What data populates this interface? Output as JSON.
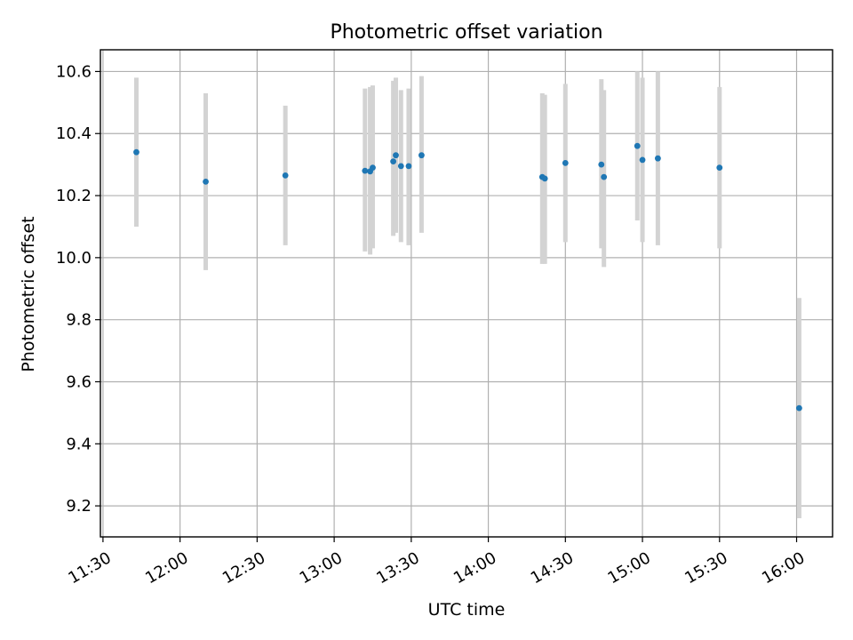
{
  "chart_data": {
    "type": "scatter",
    "title": "Photometric offset variation",
    "xlabel": "UTC time",
    "ylabel": "Photometric offset",
    "x_tick_labels": [
      "11:30",
      "12:00",
      "12:30",
      "13:00",
      "13:30",
      "14:00",
      "14:30",
      "15:00",
      "15:30",
      "16:00"
    ],
    "y_tick_labels": [
      "9.2",
      "9.4",
      "9.6",
      "9.8",
      "10.0",
      "10.2",
      "10.4",
      "10.6"
    ],
    "xlim": [
      "11:29",
      "16:14"
    ],
    "ylim": [
      9.1,
      10.67
    ],
    "grid": true,
    "colors": {
      "point": "#1f77b4",
      "errorbar": "#d3d3d3",
      "grid": "#b0b0b0"
    },
    "points": [
      {
        "x": "11:43",
        "y": 10.34,
        "ylow": 10.1,
        "yhigh": 10.58
      },
      {
        "x": "12:10",
        "y": 10.245,
        "ylow": 9.96,
        "yhigh": 10.53
      },
      {
        "x": "12:41",
        "y": 10.265,
        "ylow": 10.04,
        "yhigh": 10.49
      },
      {
        "x": "13:12",
        "y": 10.28,
        "ylow": 10.02,
        "yhigh": 10.545
      },
      {
        "x": "13:14",
        "y": 10.278,
        "ylow": 10.01,
        "yhigh": 10.55
      },
      {
        "x": "13:15",
        "y": 10.29,
        "ylow": 10.03,
        "yhigh": 10.555
      },
      {
        "x": "13:23",
        "y": 10.31,
        "ylow": 10.07,
        "yhigh": 10.57
      },
      {
        "x": "13:24",
        "y": 10.33,
        "ylow": 10.08,
        "yhigh": 10.58
      },
      {
        "x": "13:26",
        "y": 10.295,
        "ylow": 10.05,
        "yhigh": 10.54
      },
      {
        "x": "13:29",
        "y": 10.295,
        "ylow": 10.04,
        "yhigh": 10.545
      },
      {
        "x": "13:34",
        "y": 10.33,
        "ylow": 10.08,
        "yhigh": 10.585
      },
      {
        "x": "14:21",
        "y": 10.26,
        "ylow": 9.98,
        "yhigh": 10.53
      },
      {
        "x": "14:22",
        "y": 10.255,
        "ylow": 9.98,
        "yhigh": 10.525
      },
      {
        "x": "14:30",
        "y": 10.305,
        "ylow": 10.05,
        "yhigh": 10.56
      },
      {
        "x": "14:44",
        "y": 10.3,
        "ylow": 10.03,
        "yhigh": 10.575
      },
      {
        "x": "14:45",
        "y": 10.26,
        "ylow": 9.97,
        "yhigh": 10.54
      },
      {
        "x": "14:58",
        "y": 10.36,
        "ylow": 10.12,
        "yhigh": 10.6
      },
      {
        "x": "15:00",
        "y": 10.315,
        "ylow": 10.05,
        "yhigh": 10.58
      },
      {
        "x": "15:06",
        "y": 10.32,
        "ylow": 10.04,
        "yhigh": 10.6
      },
      {
        "x": "15:30",
        "y": 10.29,
        "ylow": 10.03,
        "yhigh": 10.55
      },
      {
        "x": "16:01",
        "y": 9.515,
        "ylow": 9.16,
        "yhigh": 9.87
      }
    ]
  }
}
